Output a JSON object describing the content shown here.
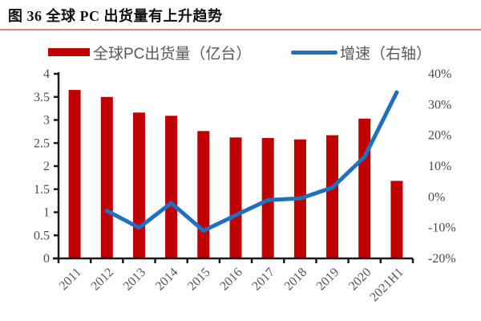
{
  "title": "图 36  全球 PC 出货量有上升趋势",
  "legend": {
    "bars_label": "全球PC出货量（亿台）",
    "line_label": "增速（右轴）"
  },
  "colors": {
    "bar": "#c00000",
    "line": "#2070c0",
    "title_rule": "#f38181",
    "axis": "#1a1a1a",
    "y_tick_text": "#494952",
    "x_tick_text": "#55555c",
    "legend_text": "#595959"
  },
  "chart_data": {
    "type": "bar",
    "subtype": "bar+line-dual-axis",
    "title": "图 36 全球 PC 出货量有上升趋势",
    "categories": [
      "2011",
      "2012",
      "2013",
      "2014",
      "2015",
      "2016",
      "2017",
      "2018",
      "2019",
      "2020",
      "2021H1"
    ],
    "series": [
      {
        "name": "全球PC出货量（亿台）",
        "type": "bar",
        "axis": "left",
        "values": [
          3.65,
          3.5,
          3.16,
          3.09,
          2.76,
          2.62,
          2.61,
          2.58,
          2.67,
          3.03,
          1.68
        ]
      },
      {
        "name": "增速（右轴）",
        "type": "line",
        "axis": "right",
        "values": [
          null,
          -4.5,
          -10,
          -2,
          -11,
          -6,
          -1,
          -0.5,
          3,
          13,
          34
        ]
      }
    ],
    "left_axis": {
      "min": 0,
      "max": 4,
      "ticks": [
        {
          "label": "0",
          "value": 0
        },
        {
          "label": "0.5",
          "value": 0.5
        },
        {
          "label": "1",
          "value": 1
        },
        {
          "label": "1.5",
          "value": 1.5
        },
        {
          "label": "2",
          "value": 2
        },
        {
          "label": "2.5",
          "value": 2.5
        },
        {
          "label": "3",
          "value": 3
        },
        {
          "label": "3.5",
          "value": 3.5
        },
        {
          "label": "4",
          "value": 4
        }
      ]
    },
    "right_axis": {
      "min": -20,
      "max": 40,
      "ticks": [
        {
          "label": "-20%",
          "value": -20
        },
        {
          "label": "-10%",
          "value": -10
        },
        {
          "label": "0%",
          "value": 0
        },
        {
          "label": "10%",
          "value": 10
        },
        {
          "label": "20%",
          "value": 20
        },
        {
          "label": "30%",
          "value": 30
        },
        {
          "label": "40%",
          "value": 40
        }
      ]
    },
    "grid": false,
    "legend_position": "top"
  }
}
